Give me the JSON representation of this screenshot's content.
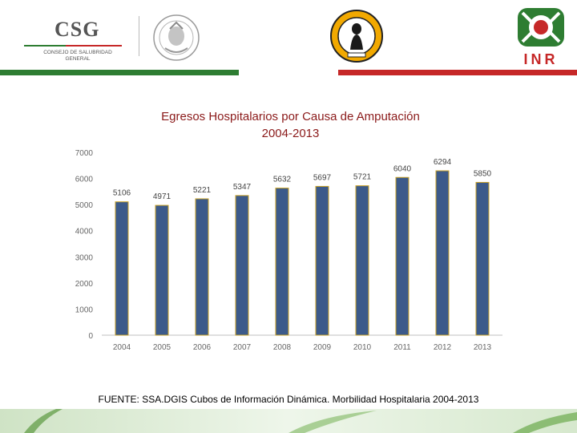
{
  "header": {
    "csg_title": "CSG",
    "csg_subtitle_line1": "CONSEJO DE SALUBRIDAD",
    "csg_subtitle_line2": "GENERAL",
    "inr_title": "INR",
    "seal_icon": "coat-of-arms-icon",
    "emblem_icon": "institution-emblem-icon",
    "inr_icon": "inr-logo-icon",
    "band_colors": {
      "green": "#2e7d32",
      "red": "#c62828"
    }
  },
  "chart_data": {
    "type": "bar",
    "title": "Egresos Hospitalarios por Causa de Amputación",
    "subtitle": "2004-2013",
    "categories": [
      "2004",
      "2005",
      "2006",
      "2007",
      "2008",
      "2009",
      "2010",
      "2011",
      "2012",
      "2013"
    ],
    "values": [
      5106,
      4971,
      5221,
      5347,
      5632,
      5697,
      5721,
      6040,
      6294,
      5850
    ],
    "data_labels": [
      "5106",
      "4971",
      "5221",
      "5347",
      "5632",
      "5697",
      "5721",
      "6040",
      "6294",
      "5850"
    ],
    "y_ticks": [
      0,
      1000,
      2000,
      3000,
      4000,
      5000,
      6000,
      7000
    ],
    "ylim": [
      0,
      7000
    ],
    "xlabel": "",
    "ylabel": "",
    "grid": false,
    "legend": "none",
    "bar_color": "#3c5a8a",
    "bar_edge_color": "#c9a227",
    "axis_label_color": "#666666"
  },
  "source": "FUENTE: SSA.DGIS Cubos de Información Dinámica. Morbilidad Hospitalaria 2004-2013"
}
